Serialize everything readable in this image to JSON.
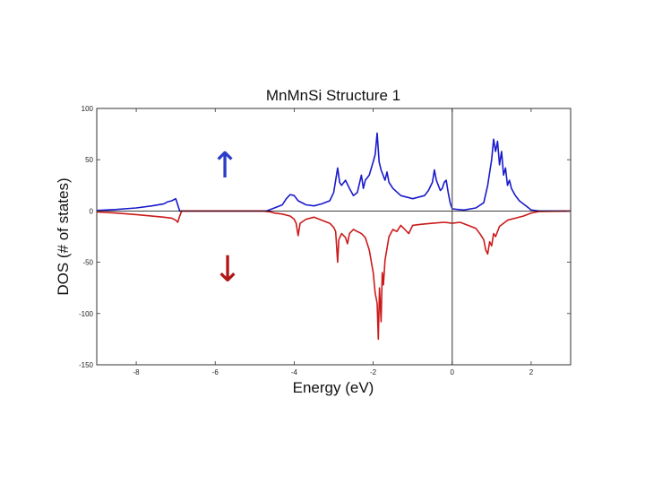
{
  "chart_data": {
    "type": "line",
    "title": "MnMnSi Structure 1",
    "xlabel": "Energy (eV)",
    "ylabel": "DOS (# of states)",
    "xlim": [
      -9,
      3
    ],
    "ylim": [
      -150,
      100
    ],
    "xticks": [
      -8,
      -6,
      -4,
      -2,
      0,
      2
    ],
    "yticks": [
      -150,
      -100,
      -50,
      0,
      50,
      100
    ],
    "grid": false,
    "annotations": [
      {
        "text": "↑",
        "color": "#2a3cc8",
        "meaning": "spin up"
      },
      {
        "text": "↓",
        "color": "#b01818",
        "meaning": "spin down"
      }
    ],
    "reference_lines": [
      {
        "orientation": "vertical",
        "x": 0
      },
      {
        "orientation": "horizontal",
        "y": 0
      }
    ],
    "series": [
      {
        "name": "spin up",
        "color": "#1a1acc",
        "points": [
          [
            -9.0,
            0.5
          ],
          [
            -8.5,
            1.5
          ],
          [
            -8.0,
            3
          ],
          [
            -7.6,
            5
          ],
          [
            -7.3,
            7
          ],
          [
            -7.2,
            9
          ],
          [
            -7.1,
            10
          ],
          [
            -7.0,
            12
          ],
          [
            -6.95,
            6
          ],
          [
            -6.9,
            0
          ],
          [
            -6.0,
            0
          ],
          [
            -4.7,
            0
          ],
          [
            -4.5,
            3
          ],
          [
            -4.3,
            6
          ],
          [
            -4.2,
            12
          ],
          [
            -4.1,
            16
          ],
          [
            -4.0,
            15
          ],
          [
            -3.9,
            10
          ],
          [
            -3.7,
            6
          ],
          [
            -3.5,
            5
          ],
          [
            -3.3,
            7
          ],
          [
            -3.1,
            10
          ],
          [
            -3.0,
            18
          ],
          [
            -2.95,
            30
          ],
          [
            -2.9,
            42
          ],
          [
            -2.85,
            28
          ],
          [
            -2.8,
            25
          ],
          [
            -2.7,
            30
          ],
          [
            -2.6,
            22
          ],
          [
            -2.5,
            15
          ],
          [
            -2.4,
            18
          ],
          [
            -2.3,
            35
          ],
          [
            -2.25,
            22
          ],
          [
            -2.2,
            30
          ],
          [
            -2.1,
            35
          ],
          [
            -2.0,
            48
          ],
          [
            -1.95,
            55
          ],
          [
            -1.9,
            76
          ],
          [
            -1.85,
            48
          ],
          [
            -1.8,
            40
          ],
          [
            -1.7,
            30
          ],
          [
            -1.65,
            38
          ],
          [
            -1.6,
            28
          ],
          [
            -1.5,
            22
          ],
          [
            -1.3,
            15
          ],
          [
            -1.0,
            12
          ],
          [
            -0.7,
            15
          ],
          [
            -0.6,
            20
          ],
          [
            -0.5,
            28
          ],
          [
            -0.45,
            40
          ],
          [
            -0.4,
            30
          ],
          [
            -0.35,
            25
          ],
          [
            -0.3,
            20
          ],
          [
            -0.25,
            22
          ],
          [
            -0.2,
            28
          ],
          [
            -0.15,
            30
          ],
          [
            -0.1,
            18
          ],
          [
            -0.05,
            8
          ],
          [
            0.0,
            2
          ],
          [
            0.3,
            1
          ],
          [
            0.6,
            3
          ],
          [
            0.8,
            8
          ],
          [
            0.9,
            25
          ],
          [
            1.0,
            50
          ],
          [
            1.05,
            70
          ],
          [
            1.1,
            58
          ],
          [
            1.15,
            68
          ],
          [
            1.2,
            45
          ],
          [
            1.25,
            58
          ],
          [
            1.3,
            35
          ],
          [
            1.35,
            42
          ],
          [
            1.4,
            25
          ],
          [
            1.45,
            30
          ],
          [
            1.5,
            22
          ],
          [
            1.6,
            15
          ],
          [
            1.7,
            10
          ],
          [
            1.8,
            7
          ],
          [
            1.9,
            4
          ],
          [
            2.0,
            1
          ],
          [
            2.2,
            0
          ],
          [
            3.0,
            0
          ]
        ]
      },
      {
        "name": "spin down",
        "color": "#cc1a1a",
        "points": [
          [
            -9.0,
            -1
          ],
          [
            -8.5,
            -2
          ],
          [
            -8.0,
            -3.5
          ],
          [
            -7.6,
            -5
          ],
          [
            -7.3,
            -6
          ],
          [
            -7.1,
            -7
          ],
          [
            -7.0,
            -9
          ],
          [
            -6.95,
            -11
          ],
          [
            -6.9,
            -5
          ],
          [
            -6.85,
            0
          ],
          [
            -6.0,
            0
          ],
          [
            -4.8,
            0
          ],
          [
            -4.6,
            -1
          ],
          [
            -4.5,
            -2
          ],
          [
            -4.3,
            -3
          ],
          [
            -4.1,
            -5
          ],
          [
            -4.0,
            -8
          ],
          [
            -3.95,
            -12
          ],
          [
            -3.9,
            -24
          ],
          [
            -3.85,
            -12
          ],
          [
            -3.7,
            -8
          ],
          [
            -3.5,
            -6
          ],
          [
            -3.3,
            -9
          ],
          [
            -3.1,
            -12
          ],
          [
            -3.0,
            -16
          ],
          [
            -2.95,
            -20
          ],
          [
            -2.9,
            -50
          ],
          [
            -2.87,
            -28
          ],
          [
            -2.8,
            -22
          ],
          [
            -2.7,
            -26
          ],
          [
            -2.65,
            -32
          ],
          [
            -2.6,
            -22
          ],
          [
            -2.5,
            -18
          ],
          [
            -2.4,
            -20
          ],
          [
            -2.3,
            -22
          ],
          [
            -2.2,
            -26
          ],
          [
            -2.1,
            -38
          ],
          [
            -2.0,
            -60
          ],
          [
            -1.95,
            -80
          ],
          [
            -1.9,
            -90
          ],
          [
            -1.87,
            -125
          ],
          [
            -1.84,
            -75
          ],
          [
            -1.8,
            -108
          ],
          [
            -1.77,
            -60
          ],
          [
            -1.74,
            -72
          ],
          [
            -1.7,
            -48
          ],
          [
            -1.6,
            -25
          ],
          [
            -1.5,
            -18
          ],
          [
            -1.4,
            -20
          ],
          [
            -1.3,
            -14
          ],
          [
            -1.2,
            -18
          ],
          [
            -1.1,
            -22
          ],
          [
            -1.0,
            -14
          ],
          [
            -0.8,
            -13
          ],
          [
            -0.5,
            -12
          ],
          [
            -0.2,
            -11
          ],
          [
            0.0,
            -12
          ],
          [
            0.2,
            -11
          ],
          [
            0.4,
            -14
          ],
          [
            0.6,
            -17
          ],
          [
            0.7,
            -22
          ],
          [
            0.8,
            -28
          ],
          [
            0.85,
            -38
          ],
          [
            0.9,
            -42
          ],
          [
            0.95,
            -30
          ],
          [
            1.0,
            -34
          ],
          [
            1.05,
            -22
          ],
          [
            1.1,
            -25
          ],
          [
            1.2,
            -15
          ],
          [
            1.3,
            -12
          ],
          [
            1.4,
            -9
          ],
          [
            1.6,
            -7
          ],
          [
            1.8,
            -5
          ],
          [
            2.0,
            -2
          ],
          [
            2.2,
            -0.5
          ],
          [
            3.0,
            0
          ]
        ]
      }
    ]
  }
}
